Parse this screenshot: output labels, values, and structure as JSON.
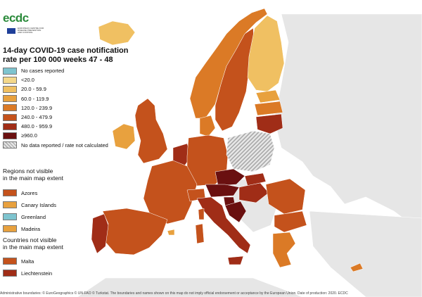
{
  "logo": {
    "wordmark": "ecdc",
    "subtitle": "EUROPEAN CENTRE FOR DISEASE PREVENTION AND CONTROL"
  },
  "title": {
    "line1": "14-day COVID-19 case notification",
    "line2": "rate per 100 000 weeks 47 - 48"
  },
  "legend": {
    "items": [
      {
        "label": "No cases reported",
        "color": "#7ec4cf"
      },
      {
        "label": "<20.0",
        "color": "#f4d88a"
      },
      {
        "label": "20.0 - 59.9",
        "color": "#f0c062"
      },
      {
        "label": "60.0 - 119.9",
        "color": "#e8a13e"
      },
      {
        "label": "120.0 - 239.9",
        "color": "#db7a26"
      },
      {
        "label": "240.0 - 479.9",
        "color": "#c4521c"
      },
      {
        "label": "480.0 - 959.9",
        "color": "#a02d17"
      },
      {
        "label": "≥960.0",
        "color": "#6a1010"
      },
      {
        "label": "No data reported / rate not calculated",
        "color": "hatch"
      }
    ]
  },
  "regions_not_visible": {
    "title_line1": "Regions not visible",
    "title_line2": "in the main map extent",
    "items": [
      {
        "label": "Azores",
        "color": "#c4521c"
      },
      {
        "label": "Canary Islands",
        "color": "#e8a13e"
      },
      {
        "label": "Greenland",
        "color": "#7ec4cf"
      },
      {
        "label": "Madeira",
        "color": "#e8a13e"
      }
    ]
  },
  "countries_not_visible": {
    "title_line1": "Countries not visible",
    "title_line2": "in the main map extent",
    "items": [
      {
        "label": "Malta",
        "color": "#c4521c"
      },
      {
        "label": "Liechtenstein",
        "color": "#a02d17"
      }
    ]
  },
  "footer": "Administrative boundaries: © EuroGeographics © UN-FAO © Turkstat. The boundaries and names shown on this map do not imply official endorsement or acceptance by the European Union. Date of production: 2020. ECDC"
}
